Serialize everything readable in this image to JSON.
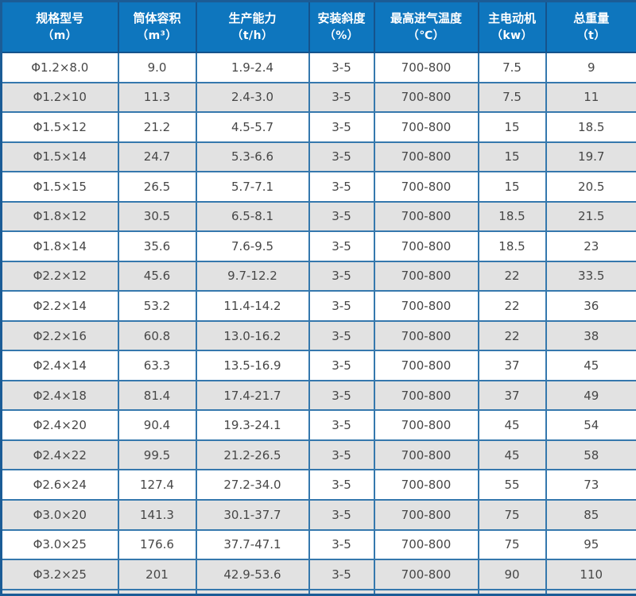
{
  "table": {
    "semantic": "rotary-dryer-specification-table",
    "colors": {
      "header_bg": "#0e76be",
      "header_text": "#ffffff",
      "outer_border": "#1b5c96",
      "inner_border": "#3578ad",
      "stripe_gray": "#e2e2e2",
      "row_white": "#ffffff",
      "cell_text": "#474747"
    },
    "columns": [
      {
        "title": "规格型号",
        "unit": "（m）"
      },
      {
        "title": "筒体容积",
        "unit": "（m³）"
      },
      {
        "title": "生产能力",
        "unit": "（t/h）"
      },
      {
        "title": "安装斜度",
        "unit": "（%）"
      },
      {
        "title": "最高进气温度",
        "unit": "（℃）"
      },
      {
        "title": "主电动机",
        "unit": "（kw）"
      },
      {
        "title": "总重量",
        "unit": "（t）"
      }
    ],
    "rows": [
      [
        "Φ1.2×8.0",
        "9.0",
        "1.9-2.4",
        "3-5",
        "700-800",
        "7.5",
        "9"
      ],
      [
        "Φ1.2×10",
        "11.3",
        "2.4-3.0",
        "3-5",
        "700-800",
        "7.5",
        "11"
      ],
      [
        "Φ1.5×12",
        "21.2",
        "4.5-5.7",
        "3-5",
        "700-800",
        "15",
        "18.5"
      ],
      [
        "Φ1.5×14",
        "24.7",
        "5.3-6.6",
        "3-5",
        "700-800",
        "15",
        "19.7"
      ],
      [
        "Φ1.5×15",
        "26.5",
        "5.7-7.1",
        "3-5",
        "700-800",
        "15",
        "20.5"
      ],
      [
        "Φ1.8×12",
        "30.5",
        "6.5-8.1",
        "3-5",
        "700-800",
        "18.5",
        "21.5"
      ],
      [
        "Φ1.8×14",
        "35.6",
        "7.6-9.5",
        "3-5",
        "700-800",
        "18.5",
        "23"
      ],
      [
        "Φ2.2×12",
        "45.6",
        "9.7-12.2",
        "3-5",
        "700-800",
        "22",
        "33.5"
      ],
      [
        "Φ2.2×14",
        "53.2",
        "11.4-14.2",
        "3-5",
        "700-800",
        "22",
        "36"
      ],
      [
        "Φ2.2×16",
        "60.8",
        "13.0-16.2",
        "3-5",
        "700-800",
        "22",
        "38"
      ],
      [
        "Φ2.4×14",
        "63.3",
        "13.5-16.9",
        "3-5",
        "700-800",
        "37",
        "45"
      ],
      [
        "Φ2.4×18",
        "81.4",
        "17.4-21.7",
        "3-5",
        "700-800",
        "37",
        "49"
      ],
      [
        "Φ2.4×20",
        "90.4",
        "19.3-24.1",
        "3-5",
        "700-800",
        "45",
        "54"
      ],
      [
        "Φ2.4×22",
        "99.5",
        "21.2-26.5",
        "3-5",
        "700-800",
        "45",
        "58"
      ],
      [
        "Φ2.6×24",
        "127.4",
        "27.2-34.0",
        "3-5",
        "700-800",
        "55",
        "73"
      ],
      [
        "Φ3.0×20",
        "141.3",
        "30.1-37.7",
        "3-5",
        "700-800",
        "75",
        "85"
      ],
      [
        "Φ3.0×25",
        "176.6",
        "37.7-47.1",
        "3-5",
        "700-800",
        "75",
        "95"
      ],
      [
        "Φ3.2×25",
        "201",
        "42.9-53.6",
        "3-5",
        "700-800",
        "90",
        "110"
      ]
    ]
  }
}
